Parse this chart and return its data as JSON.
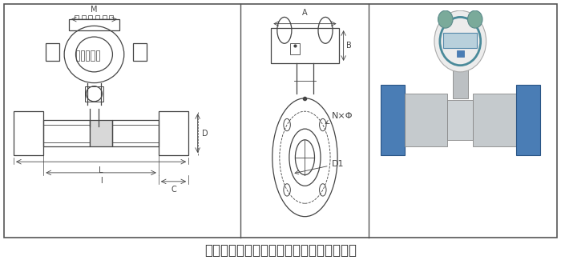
{
  "caption": "特点：管段法兰型，能更好的保证仪表精度",
  "caption_fontsize": 12,
  "bg_color": "#ffffff",
  "border_color": "#555555",
  "text_color": "#333333",
  "fig_width": 7.0,
  "fig_height": 3.3,
  "dpi": 100,
  "panel_div1": 0.4286,
  "panel_div2": 0.657,
  "label_M": "M",
  "label_A": "A",
  "label_B": "B",
  "label_D": "D",
  "label_L": "L",
  "label_l": "l",
  "label_C": "C",
  "label_NxPhi": "N×Φ",
  "label_D1": "D1",
  "lc": "#444444",
  "photo_bg": "#f5f5f5"
}
